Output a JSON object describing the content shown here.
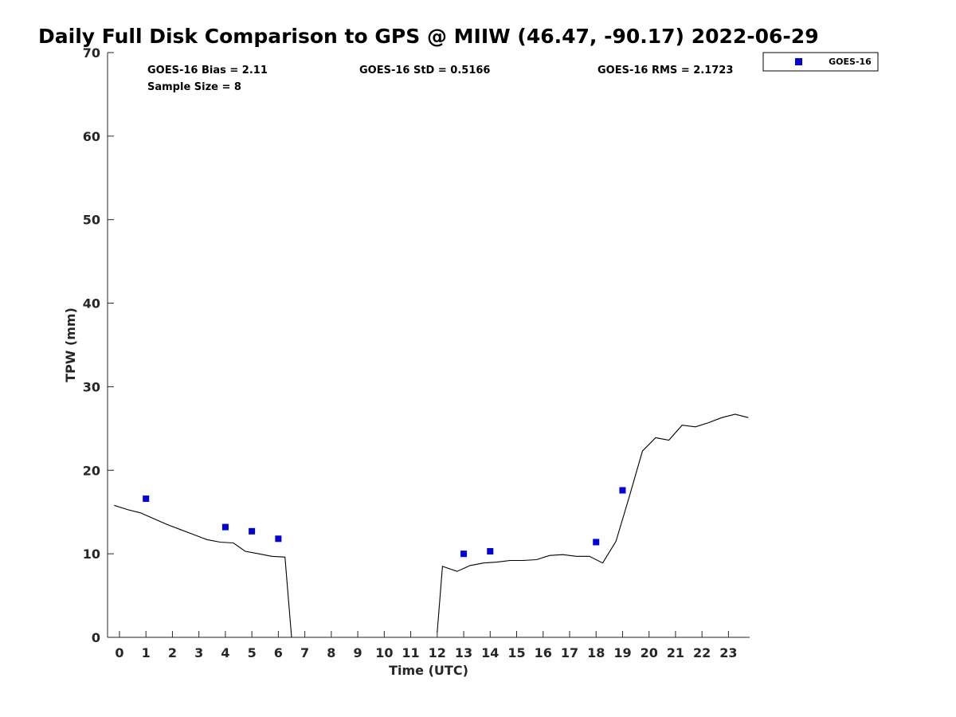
{
  "chart_data": {
    "type": "line",
    "title": "Daily Full Disk Comparison to GPS @ MIIW (46.47, -90.17) 2022-06-29",
    "xlabel": "Time (UTC)",
    "ylabel": "TPW (mm)",
    "xlim": [
      -0.45,
      23.8
    ],
    "ylim": [
      0,
      70
    ],
    "x_ticks": [
      0,
      1,
      2,
      3,
      4,
      5,
      6,
      7,
      8,
      9,
      10,
      11,
      12,
      13,
      14,
      15,
      16,
      17,
      18,
      19,
      20,
      21,
      22,
      23
    ],
    "y_ticks": [
      0,
      10,
      20,
      30,
      40,
      50,
      60,
      70
    ],
    "grid": false,
    "legend_position": "outside-top-right",
    "stats": {
      "bias": "GOES-16 Bias = 2.11",
      "std": "GOES-16 StD = 0.5166",
      "rms": "GOES-16 RMS = 2.1723",
      "sample_size": "Sample Size = 8"
    },
    "series": [
      {
        "kind": "line",
        "color": "#000000",
        "points": [
          [
            -0.2,
            15.8
          ],
          [
            0.3,
            15.3
          ],
          [
            0.8,
            14.9
          ],
          [
            1.3,
            14.2
          ],
          [
            1.8,
            13.5
          ],
          [
            2.3,
            12.9
          ],
          [
            2.8,
            12.3
          ],
          [
            3.3,
            11.7
          ],
          [
            3.8,
            11.4
          ],
          [
            4.3,
            11.3
          ],
          [
            4.75,
            10.3
          ],
          [
            5.25,
            10.0
          ],
          [
            5.75,
            9.7
          ],
          [
            6.25,
            9.6
          ],
          [
            6.5,
            0
          ]
        ]
      },
      {
        "kind": "line",
        "color": "#000000",
        "points": [
          [
            12.0,
            0.6
          ],
          [
            12.2,
            8.5
          ],
          [
            12.75,
            7.9
          ],
          [
            13.25,
            8.6
          ],
          [
            13.75,
            8.9
          ],
          [
            14.25,
            9.0
          ],
          [
            14.75,
            9.2
          ],
          [
            15.25,
            9.2
          ],
          [
            15.75,
            9.3
          ],
          [
            16.25,
            9.8
          ],
          [
            16.75,
            9.9
          ],
          [
            17.25,
            9.7
          ],
          [
            17.75,
            9.7
          ],
          [
            18.25,
            8.9
          ],
          [
            18.75,
            11.5
          ],
          [
            19.25,
            16.8
          ],
          [
            19.75,
            22.3
          ],
          [
            20.25,
            23.9
          ],
          [
            20.75,
            23.6
          ],
          [
            21.25,
            25.4
          ],
          [
            21.75,
            25.2
          ],
          [
            22.25,
            25.7
          ],
          [
            22.75,
            26.3
          ],
          [
            23.25,
            26.7
          ],
          [
            23.75,
            26.3
          ]
        ]
      },
      {
        "kind": "scatter",
        "name": "GOES-16",
        "color": "#0000dd",
        "points": [
          [
            1.0,
            16.6
          ],
          [
            4.0,
            13.2
          ],
          [
            5.0,
            12.7
          ],
          [
            6.0,
            11.8
          ],
          [
            13.0,
            10.0
          ],
          [
            14.0,
            10.3
          ],
          [
            18.0,
            11.4
          ],
          [
            19.0,
            17.6
          ]
        ]
      }
    ]
  }
}
